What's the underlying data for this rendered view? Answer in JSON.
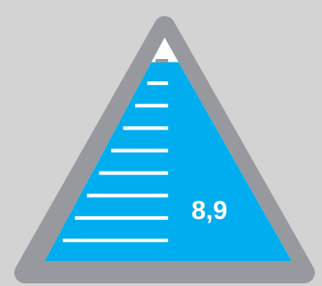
{
  "gauge": {
    "type": "triangular-level-gauge",
    "value_text": "8,9",
    "level": 0.89,
    "tick_count": 9,
    "colors": {
      "background": "#d3d3d3",
      "frame": "#97999e",
      "fill": "#00aeef",
      "empty": "#ffffff",
      "ticks": "#ffffff",
      "value_text": "#ffffff"
    }
  }
}
